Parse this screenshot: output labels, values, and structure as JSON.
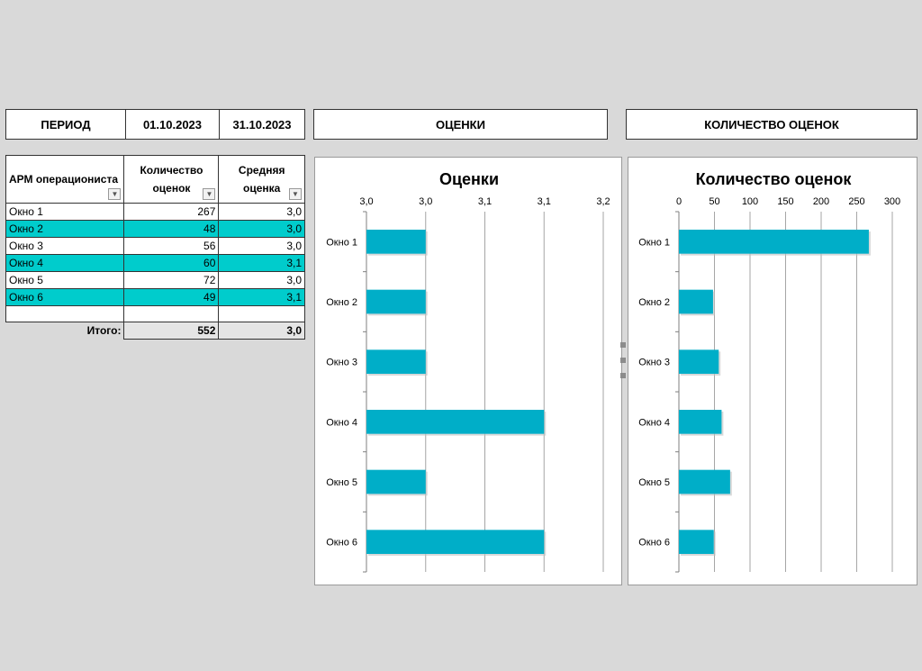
{
  "period": {
    "label": "ПЕРИОД",
    "start": "01.10.2023",
    "end": "31.10.2023"
  },
  "headers": {
    "ratings": "ОЦЕНКИ",
    "count": "КОЛИЧЕСТВО ОЦЕНОК"
  },
  "table": {
    "columns": [
      "АРМ операциониста",
      "Количество оценок",
      "Средняя оценка"
    ],
    "rows": [
      {
        "name": "Окно 1",
        "count": "267",
        "avg": "3,0",
        "highlight": false
      },
      {
        "name": "Окно 2",
        "count": "48",
        "avg": "3,0",
        "highlight": true
      },
      {
        "name": "Окно 3",
        "count": "56",
        "avg": "3,0",
        "highlight": false
      },
      {
        "name": "Окно 4",
        "count": "60",
        "avg": "3,1",
        "highlight": true
      },
      {
        "name": "Окно 5",
        "count": "72",
        "avg": "3,0",
        "highlight": false
      },
      {
        "name": "Окно 6",
        "count": "49",
        "avg": "3,1",
        "highlight": true
      }
    ],
    "total": {
      "label": "Итого:",
      "count": "552",
      "avg": "3,0"
    }
  },
  "colors": {
    "bar": "#00aec8",
    "highlight": "#00cccc",
    "background": "#d9d9d9"
  },
  "chart_data": [
    {
      "type": "bar",
      "orientation": "horizontal",
      "title": "Оценки",
      "categories": [
        "Окно 1",
        "Окно 2",
        "Окно 3",
        "Окно 4",
        "Окно 5",
        "Окно 6"
      ],
      "values": [
        3.0,
        3.0,
        3.0,
        3.1,
        3.0,
        3.1
      ],
      "xlim": [
        2.95,
        3.15
      ],
      "ticks": [
        2.95,
        3.0,
        3.05,
        3.1,
        3.15
      ],
      "tick_labels": [
        "3,0",
        "3,0",
        "3,1",
        "3,1",
        "3,2"
      ],
      "grid": true,
      "legend": "none"
    },
    {
      "type": "bar",
      "orientation": "horizontal",
      "title": "Количество оценок",
      "categories": [
        "Окно 1",
        "Окно 2",
        "Окно 3",
        "Окно 4",
        "Окно 5",
        "Окно 6"
      ],
      "values": [
        267,
        48,
        56,
        60,
        72,
        49
      ],
      "xlim": [
        0,
        300
      ],
      "ticks": [
        0,
        50,
        100,
        150,
        200,
        250,
        300
      ],
      "tick_labels": [
        "0",
        "50",
        "100",
        "150",
        "200",
        "250",
        "300"
      ],
      "grid": true,
      "legend": "none"
    }
  ]
}
